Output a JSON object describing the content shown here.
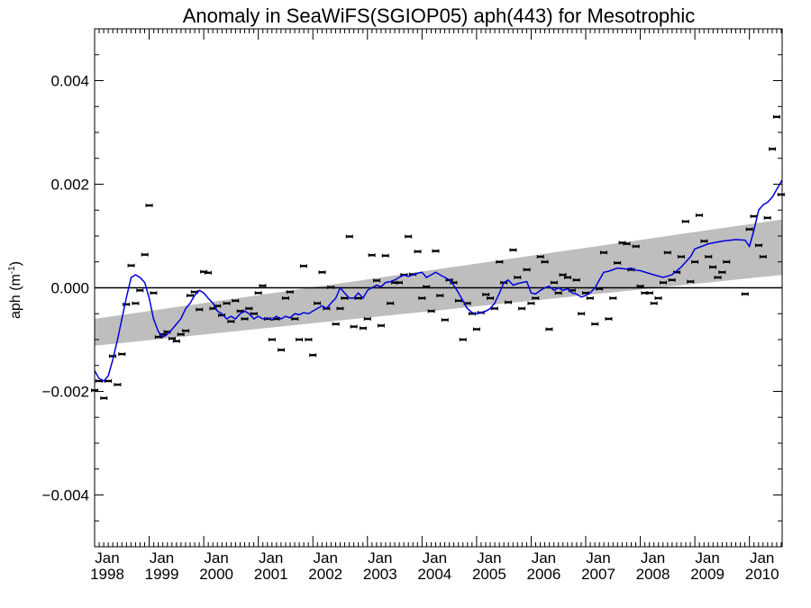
{
  "chart_data": {
    "type": "scatter",
    "title": "Anomaly in SeaWiFS(SGIOP05) aph(443) for Mesotrophic",
    "ylabel": {
      "base": "aph (m",
      "exp": "-1",
      "close": ")"
    },
    "xlabel": "",
    "xlim": [
      1998.0,
      2010.6
    ],
    "ylim": [
      -0.005,
      0.005
    ],
    "grid": false,
    "legend": "none",
    "y_ticks": [
      {
        "value": 0.004,
        "label": "0.004"
      },
      {
        "value": 0.002,
        "label": "0.002"
      },
      {
        "value": 0.0,
        "label": "0.000"
      },
      {
        "value": -0.002,
        "label": "−0.002"
      },
      {
        "value": -0.004,
        "label": "−0.004"
      }
    ],
    "x_ticks": [
      {
        "value": 1998,
        "month": "Jan",
        "year": "1998"
      },
      {
        "value": 1999,
        "month": "Jan",
        "year": "1999"
      },
      {
        "value": 2000,
        "month": "Jan",
        "year": "2000"
      },
      {
        "value": 2001,
        "month": "Jan",
        "year": "2001"
      },
      {
        "value": 2002,
        "month": "Jan",
        "year": "2002"
      },
      {
        "value": 2003,
        "month": "Jan",
        "year": "2003"
      },
      {
        "value": 2004,
        "month": "Jan",
        "year": "2004"
      },
      {
        "value": 2005,
        "month": "Jan",
        "year": "2005"
      },
      {
        "value": 2006,
        "month": "Jan",
        "year": "2006"
      },
      {
        "value": 2007,
        "month": "Jan",
        "year": "2007"
      },
      {
        "value": 2008,
        "month": "Jan",
        "year": "2008"
      },
      {
        "value": 2009,
        "month": "Jan",
        "year": "2009"
      },
      {
        "value": 2010,
        "month": "Jan",
        "year": "2010"
      }
    ],
    "trend_band": {
      "color": "#bebebe",
      "start": {
        "x": 1998.0,
        "lower": -0.00112,
        "upper": -0.0006
      },
      "end": {
        "x": 2010.6,
        "lower": 0.00025,
        "upper": 0.00132
      }
    },
    "zero_line": 0.0,
    "monthly_points": {
      "color": "#000000",
      "x": [
        1998.0,
        1998.08,
        1998.17,
        1998.25,
        1998.33,
        1998.42,
        1998.5,
        1998.58,
        1998.67,
        1998.75,
        1998.83,
        1998.92,
        1999.0,
        1999.08,
        1999.17,
        1999.25,
        1999.33,
        1999.42,
        1999.5,
        1999.58,
        1999.67,
        1999.75,
        1999.83,
        1999.92,
        2000.0,
        2000.08,
        2000.17,
        2000.25,
        2000.33,
        2000.42,
        2000.5,
        2000.58,
        2000.67,
        2000.75,
        2000.83,
        2000.92,
        2001.0,
        2001.08,
        2001.17,
        2001.25,
        2001.33,
        2001.42,
        2001.5,
        2001.58,
        2001.67,
        2001.75,
        2001.83,
        2001.92,
        2002.0,
        2002.08,
        2002.17,
        2002.25,
        2002.33,
        2002.42,
        2002.5,
        2002.58,
        2002.67,
        2002.75,
        2002.83,
        2002.92,
        2003.0,
        2003.08,
        2003.17,
        2003.25,
        2003.33,
        2003.42,
        2003.5,
        2003.58,
        2003.67,
        2003.75,
        2003.83,
        2003.92,
        2004.0,
        2004.08,
        2004.17,
        2004.25,
        2004.33,
        2004.42,
        2004.5,
        2004.58,
        2004.67,
        2004.75,
        2004.83,
        2004.92,
        2005.0,
        2005.08,
        2005.17,
        2005.25,
        2005.33,
        2005.42,
        2005.5,
        2005.58,
        2005.67,
        2005.75,
        2005.83,
        2005.92,
        2006.0,
        2006.08,
        2006.17,
        2006.25,
        2006.33,
        2006.42,
        2006.5,
        2006.58,
        2006.67,
        2006.75,
        2006.83,
        2006.92,
        2007.0,
        2007.08,
        2007.17,
        2007.25,
        2007.33,
        2007.42,
        2007.5,
        2007.58,
        2007.67,
        2007.75,
        2007.83,
        2007.92,
        2008.0,
        2008.08,
        2008.17,
        2008.25,
        2008.33,
        2008.42,
        2008.5,
        2008.58,
        2008.67,
        2008.75,
        2008.83,
        2008.92,
        2009.0,
        2009.08,
        2009.17,
        2009.25,
        2009.33,
        2009.42,
        2009.5,
        2009.58,
        2009.92,
        2010.0,
        2010.08,
        2010.17,
        2010.25,
        2010.33,
        2010.42,
        2010.5,
        2010.58
      ],
      "y": [
        -0.00198,
        -0.0018,
        -0.00213,
        -0.0018,
        -0.00132,
        -0.00187,
        -0.00128,
        -0.00032,
        0.00043,
        -0.0003,
        -5e-05,
        0.00064,
        0.00159,
        -0.0001,
        -0.00095,
        -0.0009,
        -0.00085,
        -0.00098,
        -0.00103,
        -0.0009,
        -0.00083,
        -0.00015,
        -8e-05,
        -0.00042,
        0.00031,
        0.00029,
        -0.0004,
        -0.00035,
        -0.00053,
        -0.0003,
        -0.00065,
        -0.00025,
        -0.00045,
        -0.0006,
        -0.0004,
        -0.0005,
        -0.0001,
        4e-05,
        -0.0006,
        -0.001,
        -0.0006,
        -0.0012,
        -0.0002,
        -8e-05,
        -0.0006,
        -0.001,
        0.00042,
        -0.001,
        -0.0013,
        -0.0003,
        0.0003,
        -0.0004,
        1e-05,
        -0.0007,
        -0.0004,
        -0.0002,
        0.00099,
        -0.00075,
        -0.0002,
        -0.00078,
        -0.0006,
        0.00063,
        0.00014,
        -0.00073,
        0.00062,
        -0.0003,
        0.0001,
        0.0001,
        0.00025,
        0.00099,
        0.00026,
        0.0007,
        -0.0002,
        2e-05,
        -0.00045,
        0.00071,
        -0.00015,
        -0.00062,
        0.00015,
        0.0001,
        -0.00025,
        -0.001,
        -0.0003,
        -0.0005,
        -0.0008,
        -0.00048,
        -0.00013,
        -0.0002,
        -0.0004,
        0.0005,
        0.0001,
        -0.00028,
        0.00073,
        0.0002,
        -0.0004,
        0.00035,
        -0.0003,
        -0.0002,
        0.0006,
        0.0005,
        -0.0008,
        0.0001,
        -0.0001,
        0.00025,
        0.0002,
        -5e-05,
        0.00015,
        -0.0005,
        -0.0001,
        -0.0002,
        -0.0007,
        -2e-05,
        0.00068,
        -0.0006,
        -0.0002,
        0.00048,
        0.00087,
        0.00085,
        0.00035,
        0.0008,
        3e-05,
        -0.0001,
        -0.0001,
        -0.0003,
        -0.0002,
        0.0001,
        0.00068,
        0.00015,
        0.0003,
        0.0006,
        0.00128,
        0.00012,
        0.0005,
        0.0014,
        0.0009,
        0.0006,
        0.0004,
        0.0002,
        0.0003,
        0.0005,
        -0.00012,
        0.00113,
        0.00138,
        0.00082,
        0.0006,
        0.00135,
        0.00268,
        0.0033,
        0.0018
      ]
    },
    "smoothed_series": {
      "color": "#0000dd",
      "x": [
        1998.0,
        1998.08,
        1998.17,
        1998.25,
        1998.33,
        1998.42,
        1998.5,
        1998.58,
        1998.67,
        1998.75,
        1998.83,
        1998.92,
        1999.0,
        1999.08,
        1999.17,
        1999.25,
        1999.33,
        1999.42,
        1999.5,
        1999.58,
        1999.67,
        1999.75,
        1999.83,
        1999.92,
        2000.0,
        2000.08,
        2000.17,
        2000.25,
        2000.33,
        2000.42,
        2000.5,
        2000.58,
        2000.67,
        2000.75,
        2000.83,
        2000.92,
        2001.0,
        2001.08,
        2001.17,
        2001.25,
        2001.33,
        2001.42,
        2001.5,
        2001.58,
        2001.67,
        2001.75,
        2001.83,
        2001.92,
        2002.0,
        2002.08,
        2002.17,
        2002.25,
        2002.33,
        2002.42,
        2002.5,
        2002.58,
        2002.67,
        2002.75,
        2002.83,
        2002.92,
        2003.0,
        2003.08,
        2003.17,
        2003.25,
        2003.33,
        2003.42,
        2003.5,
        2003.58,
        2003.67,
        2003.75,
        2003.83,
        2003.92,
        2004.0,
        2004.08,
        2004.17,
        2004.25,
        2004.33,
        2004.42,
        2004.5,
        2004.58,
        2004.67,
        2004.75,
        2004.83,
        2004.92,
        2005.0,
        2005.08,
        2005.17,
        2005.25,
        2005.33,
        2005.42,
        2005.5,
        2005.58,
        2005.67,
        2005.75,
        2005.83,
        2005.92,
        2006.0,
        2006.08,
        2006.17,
        2006.25,
        2006.33,
        2006.42,
        2006.5,
        2006.58,
        2006.67,
        2006.75,
        2006.83,
        2006.92,
        2007.0,
        2007.08,
        2007.17,
        2007.25,
        2007.33,
        2007.42,
        2007.5,
        2007.58,
        2007.67,
        2007.75,
        2007.83,
        2007.92,
        2008.0,
        2008.25,
        2008.42,
        2008.58,
        2008.75,
        2008.92,
        2009.0,
        2009.25,
        2009.5,
        2009.75,
        2009.92,
        2010.0,
        2010.08,
        2010.17,
        2010.25,
        2010.33,
        2010.42,
        2010.5,
        2010.6
      ],
      "y": [
        -0.0016,
        -0.00175,
        -0.0018,
        -0.0017,
        -0.0014,
        -0.001,
        -0.0006,
        -0.0002,
        0.0002,
        0.00025,
        0.0002,
        0.0001,
        -0.0002,
        -0.0006,
        -0.00085,
        -0.00095,
        -0.0009,
        -0.0008,
        -0.0007,
        -0.0006,
        -0.0004,
        -0.0003,
        -0.00015,
        -5e-05,
        -0.0001,
        -0.0002,
        -0.0003,
        -0.00045,
        -0.0005,
        -0.0006,
        -0.00055,
        -0.0006,
        -0.0005,
        -0.00045,
        -0.0005,
        -0.0006,
        -0.00055,
        -0.0006,
        -0.00058,
        -0.00062,
        -0.00055,
        -0.0006,
        -0.00055,
        -0.00058,
        -0.0005,
        -0.00052,
        -0.00048,
        -0.0005,
        -0.00045,
        -0.0004,
        -0.00035,
        -0.0004,
        -0.0003,
        -0.0002,
        0.0,
        -0.0001,
        -0.0002,
        -0.0002,
        -0.0001,
        -0.0002,
        -5e-05,
        0.0,
        5e-05,
        2e-05,
        0.0001,
        0.00012,
        0.00015,
        0.0002,
        0.00025,
        0.00022,
        0.00025,
        0.00028,
        0.0003,
        0.0002,
        0.00025,
        0.0003,
        0.00025,
        0.0002,
        0.00015,
        5e-05,
        -0.0001,
        -0.00025,
        -0.0004,
        -0.00048,
        -0.0005,
        -0.00048,
        -0.00045,
        -0.0004,
        -0.0003,
        -0.0001,
        0.0001,
        0.00015,
        5e-05,
        8e-05,
        0.0001,
        0.00012,
        -0.0001,
        -0.00012,
        -5e-05,
        0.0,
        3e-05,
        -5e-05,
        0.0,
        -5e-05,
        -2e-05,
        -0.0001,
        -0.00012,
        -0.00018,
        -0.00015,
        -0.0001,
        0.0,
        0.00015,
        0.0003,
        0.00032,
        0.00035,
        0.00038,
        0.00037,
        0.00036,
        0.00038,
        0.00034,
        0.00033,
        0.00025,
        0.0002,
        0.00025,
        0.0004,
        0.0006,
        0.00075,
        0.00085,
        0.0009,
        0.00093,
        0.00092,
        0.0008,
        0.0011,
        0.0015,
        0.0016,
        0.00165,
        0.00175,
        0.0019,
        0.00208
      ]
    }
  }
}
